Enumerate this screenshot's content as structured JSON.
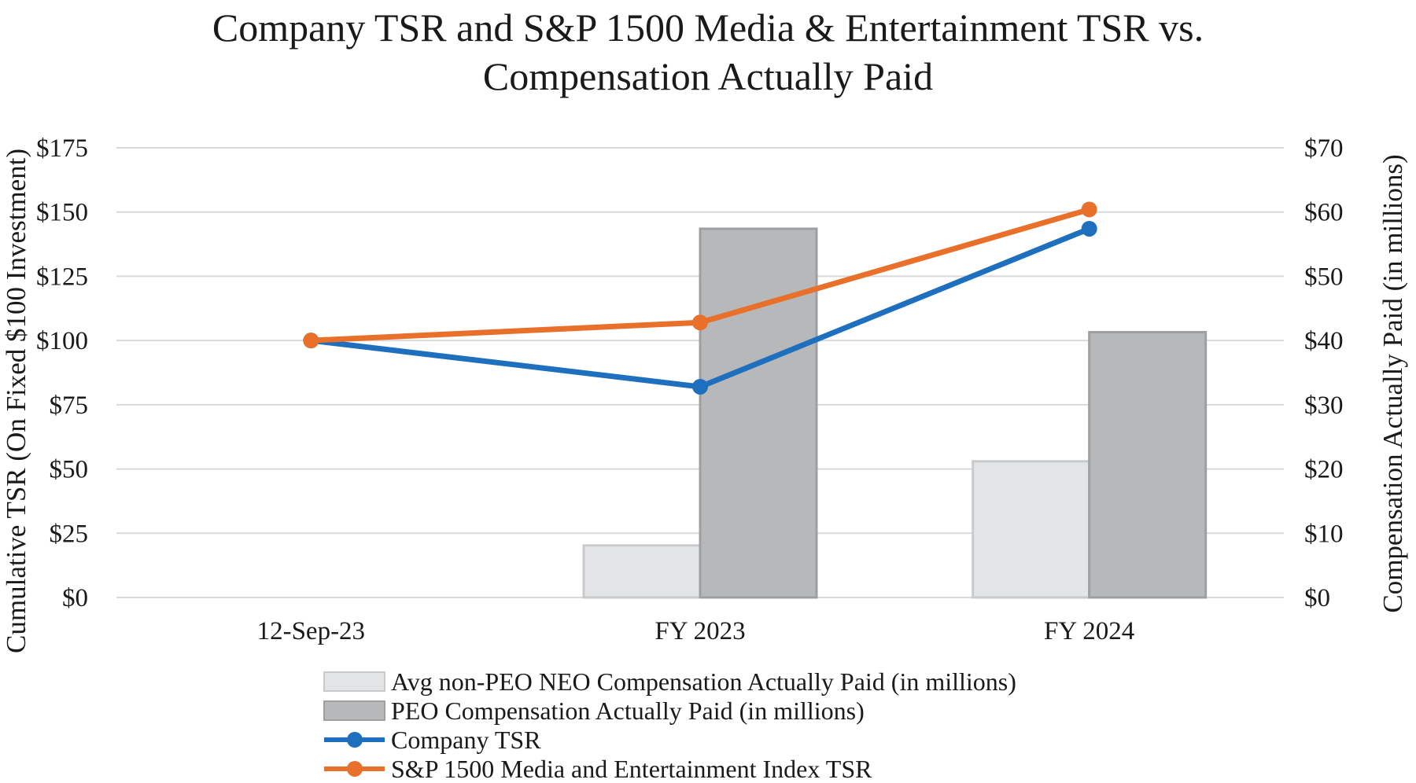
{
  "chart_data": {
    "type": "bar",
    "title_lines": [
      "Company TSR and S&P 1500 Media & Entertainment TSR vs.",
      "Compensation Actually Paid"
    ],
    "categories": [
      "12-Sep-23",
      "FY 2023",
      "FY 2024"
    ],
    "ylabel_left": "Cumulative TSR (On Fixed $100 Investment)",
    "ylabel_right": "Compensation Actually Paid (in millions)",
    "ylim_left": [
      0,
      175
    ],
    "ylim_right": [
      0,
      70
    ],
    "yticks_left": [
      "$0",
      "$25",
      "$50",
      "$75",
      "$100",
      "$125",
      "$150",
      "$175"
    ],
    "yticks_right": [
      "$0",
      "$10",
      "$20",
      "$30",
      "$40",
      "$50",
      "$60",
      "$70"
    ],
    "grid": true,
    "legend_position": "bottom",
    "bar_series": [
      {
        "name": "Avg non-PEO NEO Compensation Actually Paid (in millions)",
        "axis": "right",
        "color": "#e3e4e6",
        "edge": "#c9cacc",
        "values": [
          null,
          8.1,
          21.2
        ]
      },
      {
        "name": "PEO Compensation Actually Paid (in millions)",
        "axis": "right",
        "color": "#b7b8ba",
        "edge": "#9e9fa1",
        "values": [
          null,
          57.4,
          41.3
        ]
      }
    ],
    "line_series": [
      {
        "name": "Company TSR",
        "axis": "left",
        "color": "#1f6fbf",
        "values": [
          100,
          82,
          143.5
        ]
      },
      {
        "name": "S&P 1500 Media and Entertainment Index TSR",
        "axis": "left",
        "color": "#e8702a",
        "values": [
          100,
          107,
          151
        ]
      }
    ]
  }
}
